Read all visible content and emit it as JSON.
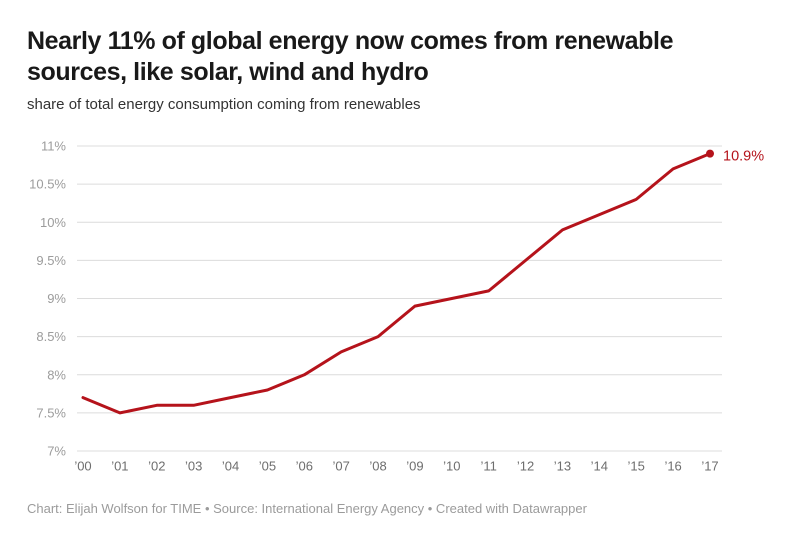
{
  "header": {
    "title": "Nearly 11% of global energy now comes from renewable sources, like solar, wind and hydro",
    "subtitle": "share of total energy consumption coming from renewables"
  },
  "chart_data": {
    "type": "line",
    "title": "Nearly 11% of global energy now comes from renewable sources, like solar, wind and hydro",
    "subtitle": "share of total energy consumption coming from renewables",
    "categories": [
      "’00",
      "’01",
      "’02",
      "’03",
      "’04",
      "’05",
      "’06",
      "’07",
      "’08",
      "’09",
      "’10",
      "’11",
      "’12",
      "’13",
      "’14",
      "’15",
      "’16",
      "’17"
    ],
    "values": [
      7.7,
      7.5,
      7.6,
      7.6,
      7.7,
      7.8,
      8.0,
      8.3,
      8.5,
      8.9,
      9.0,
      9.1,
      9.5,
      9.9,
      10.1,
      10.3,
      10.7,
      10.9
    ],
    "unit": "%",
    "end_label": "10.9%",
    "y_ticks": [
      {
        "value": 11,
        "label": "11%"
      },
      {
        "value": 10.5,
        "label": "10.5%"
      },
      {
        "value": 10,
        "label": "10%"
      },
      {
        "value": 9.5,
        "label": "9.5%"
      },
      {
        "value": 9,
        "label": "9%"
      },
      {
        "value": 8.5,
        "label": "8.5%"
      },
      {
        "value": 8,
        "label": "8%"
      },
      {
        "value": 7.5,
        "label": "7.5%"
      },
      {
        "value": 7,
        "label": "7%"
      }
    ],
    "ylim": [
      7,
      11
    ],
    "xlabel": "",
    "ylabel": "",
    "grid": true,
    "legend": "none",
    "line_color": "#b5131b",
    "marker": "end-dot"
  },
  "footer": {
    "credits": "Chart: Elijah Wolfson for TIME • Source: International Energy Agency • Created with Datawrapper"
  }
}
